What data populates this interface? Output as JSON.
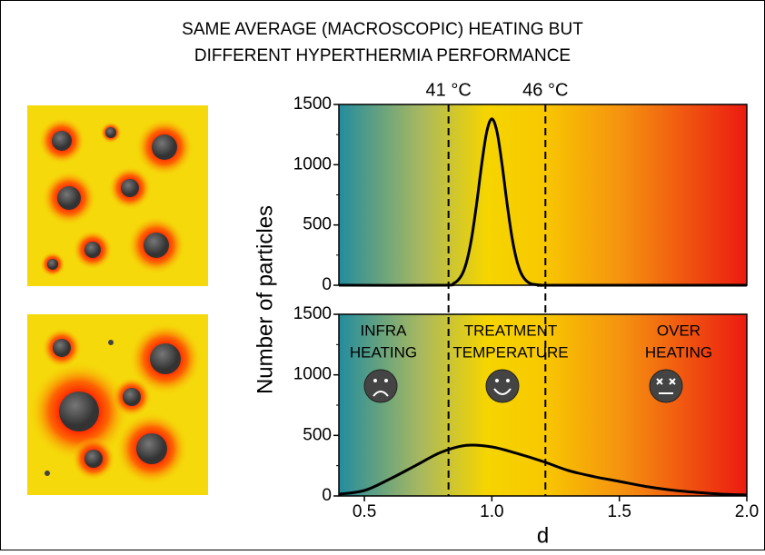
{
  "chart_data": [
    {
      "type": "line",
      "title": "SAME AVERAGE (MACROSCOPIC) HEATING BUT",
      "subtitle": "DIFFERENT HYPERTHERMIA PERFORMANCE",
      "ylabel": "Number of particles",
      "annotations": [
        "41 °C",
        "46 °C"
      ],
      "vlines": [
        0.83,
        1.21
      ],
      "x": [
        0.4,
        0.8,
        0.85,
        0.88,
        0.9,
        0.92,
        0.94,
        0.96,
        0.98,
        1.0,
        1.02,
        1.04,
        1.06,
        1.08,
        1.1,
        1.12,
        1.15,
        1.2,
        1.25,
        2.0
      ],
      "series": [
        {
          "color": "#000000",
          "values": [
            0,
            0,
            15,
            78,
            187,
            384,
            672,
            1002,
            1274,
            1380,
            1274,
            1002,
            672,
            384,
            187,
            78,
            15,
            0,
            0,
            0
          ]
        }
      ],
      "xlim": [
        0.4,
        2.0
      ],
      "ylim": [
        0,
        1500
      ],
      "yticks": [
        0,
        500,
        1000,
        1500
      ]
    },
    {
      "type": "line",
      "xlabel": "d",
      "annotations": [
        "INFRA",
        "HEATING",
        "TREATMENT",
        "TEMPERATURE",
        "OVER",
        "HEATING"
      ],
      "x": [
        0.4,
        0.5,
        0.6,
        0.7,
        0.8,
        0.9,
        1.0,
        1.1,
        1.2,
        1.3,
        1.4,
        1.5,
        1.6,
        1.7,
        1.8,
        1.9,
        2.0
      ],
      "series": [
        {
          "color": "#000000",
          "values": [
            15,
            45,
            140,
            250,
            360,
            418,
            405,
            350,
            285,
            210,
            160,
            120,
            80,
            50,
            30,
            15,
            8
          ]
        }
      ],
      "xlim": [
        0.4,
        2.0
      ],
      "ylim": [
        0,
        1500
      ],
      "yticks": [
        0,
        500,
        1000,
        1500
      ],
      "xticks": [
        0.5,
        {
          "value": 1.0,
          "label": "1.0"
        },
        1.5,
        {
          "value": 2.0,
          "label": "2.0"
        }
      ]
    }
  ]
}
